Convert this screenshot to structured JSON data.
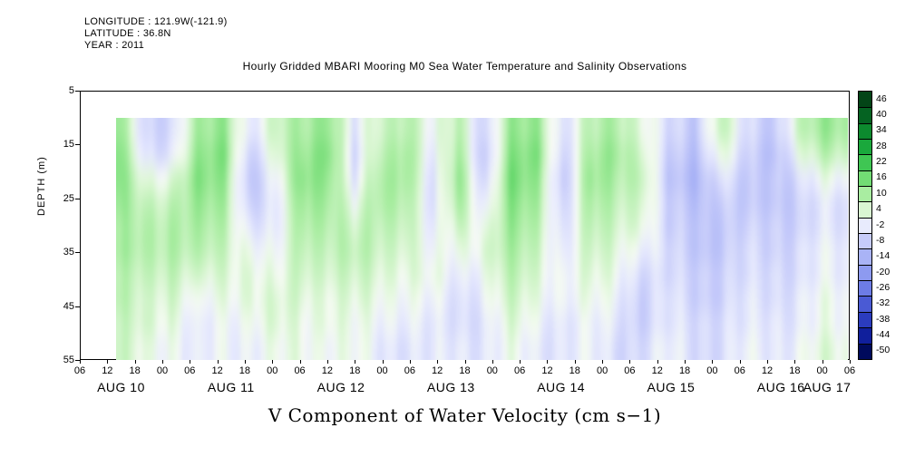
{
  "header": {
    "longitude": "LONGITUDE : 121.9W(-121.9)",
    "latitude": "LATITUDE : 36.8N",
    "year": "YEAR : 2011"
  },
  "title": "Hourly Gridded MBARI Mooring M0 Sea Water Temperature and Salinity Observations",
  "footer_label": "V Component of Water Velocity (cm s−1)",
  "chart_data": {
    "type": "heatmap",
    "title": "Hourly Gridded MBARI Mooring M0 Sea Water Temperature and Salinity Observations",
    "xlabel": "V Component of Water Velocity (cm s−1)",
    "ylabel": "DEPTH (m)",
    "y_ticks": [
      5,
      15,
      25,
      35,
      45,
      55
    ],
    "y_range": [
      5,
      55
    ],
    "x_start": "AUG 10 06:00",
    "x_end": "AUG 17 06:00",
    "hour_ticks": [
      "06",
      "12",
      "18",
      "00",
      "06",
      "12",
      "18",
      "00",
      "06",
      "12",
      "18",
      "00",
      "06",
      "12",
      "18",
      "00",
      "06",
      "12",
      "18",
      "00",
      "06",
      "12",
      "18",
      "00",
      "06",
      "12",
      "18",
      "00",
      "06"
    ],
    "day_labels": [
      "AUG 10",
      "AUG 11",
      "AUG 12",
      "AUG 13",
      "AUG 14",
      "AUG 15",
      "AUG 16",
      "AUG 17"
    ],
    "data_start": "AUG 10 12:00",
    "time_step_hours": 6,
    "depths": [
      10,
      15,
      20,
      25,
      30,
      35,
      40,
      45,
      50,
      55
    ],
    "columns_orientation": "columns[time][depth], velocity cm/s, estimated from pixel colors",
    "columns": [
      [
        10,
        12,
        12,
        10,
        8,
        8,
        6,
        6,
        4,
        4
      ],
      [
        -6,
        -4,
        2,
        6,
        8,
        8,
        6,
        4,
        4,
        2
      ],
      [
        -4,
        -2,
        4,
        8,
        10,
        10,
        8,
        6,
        4,
        2
      ],
      [
        8,
        10,
        12,
        10,
        8,
        6,
        2,
        -2,
        -4,
        -4
      ],
      [
        12,
        14,
        12,
        10,
        8,
        6,
        4,
        2,
        0,
        0
      ],
      [
        -2,
        -6,
        -8,
        -6,
        -2,
        2,
        4,
        4,
        2,
        0
      ],
      [
        4,
        2,
        -2,
        -4,
        -4,
        -2,
        0,
        2,
        2,
        0
      ],
      [
        10,
        12,
        14,
        12,
        10,
        8,
        6,
        4,
        2,
        2
      ],
      [
        14,
        16,
        14,
        12,
        10,
        8,
        6,
        4,
        4,
        2
      ],
      [
        -4,
        -6,
        -4,
        0,
        4,
        6,
        4,
        2,
        0,
        0
      ],
      [
        6,
        8,
        10,
        10,
        8,
        6,
        4,
        2,
        0,
        -2
      ],
      [
        10,
        12,
        12,
        10,
        8,
        6,
        4,
        2,
        0,
        -2
      ],
      [
        -2,
        -4,
        -6,
        -6,
        -4,
        -2,
        0,
        -2,
        -4,
        -4
      ],
      [
        8,
        10,
        12,
        10,
        6,
        2,
        -2,
        -4,
        -4,
        -2
      ],
      [
        -6,
        -8,
        -6,
        -2,
        2,
        4,
        2,
        0,
        -2,
        -2
      ],
      [
        10,
        12,
        14,
        12,
        10,
        8,
        6,
        4,
        2,
        0
      ],
      [
        12,
        14,
        12,
        10,
        8,
        6,
        4,
        2,
        0,
        -2
      ],
      [
        -4,
        -6,
        -8,
        -6,
        -4,
        -2,
        0,
        0,
        -2,
        -2
      ],
      [
        6,
        8,
        10,
        8,
        6,
        4,
        2,
        0,
        -2,
        -2
      ],
      [
        10,
        12,
        10,
        8,
        6,
        4,
        2,
        0,
        -2,
        -4
      ],
      [
        4,
        6,
        8,
        6,
        4,
        0,
        -4,
        -6,
        -6,
        -4
      ],
      [
        -6,
        -8,
        -10,
        -8,
        -8,
        -6,
        -6,
        -4,
        -4,
        -2
      ],
      [
        -8,
        -10,
        -12,
        -10,
        -8,
        -8,
        -6,
        -6,
        -4,
        -4
      ],
      [
        8,
        4,
        -2,
        -6,
        -8,
        -8,
        -6,
        -6,
        -4,
        -4
      ],
      [
        -6,
        -8,
        -10,
        -10,
        -8,
        -6,
        -6,
        -4,
        -4,
        -2
      ],
      [
        -8,
        -10,
        -8,
        -8,
        -6,
        -6,
        -4,
        -4,
        -2,
        -2
      ],
      [
        6,
        2,
        -4,
        -6,
        -6,
        -4,
        -4,
        -2,
        -2,
        0
      ],
      [
        10,
        6,
        0,
        -4,
        -4,
        -2,
        -2,
        0,
        0,
        2
      ]
    ],
    "colorbar": {
      "ticks": [
        46,
        40,
        34,
        28,
        22,
        16,
        10,
        4,
        -2,
        -8,
        -14,
        -20,
        -26,
        -32,
        -38,
        -44,
        -50
      ],
      "units": "cm s-1",
      "stops": [
        {
          "v": -50,
          "c": "#000a5c"
        },
        {
          "v": -44,
          "c": "#101f9c"
        },
        {
          "v": -38,
          "c": "#2b3cbe"
        },
        {
          "v": -32,
          "c": "#4a5ad4"
        },
        {
          "v": -26,
          "c": "#6d7ce6"
        },
        {
          "v": -20,
          "c": "#8d9af0"
        },
        {
          "v": -14,
          "c": "#a9b3f6"
        },
        {
          "v": -8,
          "c": "#c6cbfa"
        },
        {
          "v": -2,
          "c": "#e8ebfd"
        },
        {
          "v": 1,
          "c": "#f4faf2"
        },
        {
          "v": 4,
          "c": "#d9f6d2"
        },
        {
          "v": 10,
          "c": "#a9eda1"
        },
        {
          "v": 16,
          "c": "#72dc74"
        },
        {
          "v": 22,
          "c": "#3fc653"
        },
        {
          "v": 28,
          "c": "#1aa83c"
        },
        {
          "v": 34,
          "c": "#0c8a2e"
        },
        {
          "v": 40,
          "c": "#056322"
        },
        {
          "v": 46,
          "c": "#034517"
        }
      ]
    },
    "legend_position": "right",
    "grid": false
  }
}
